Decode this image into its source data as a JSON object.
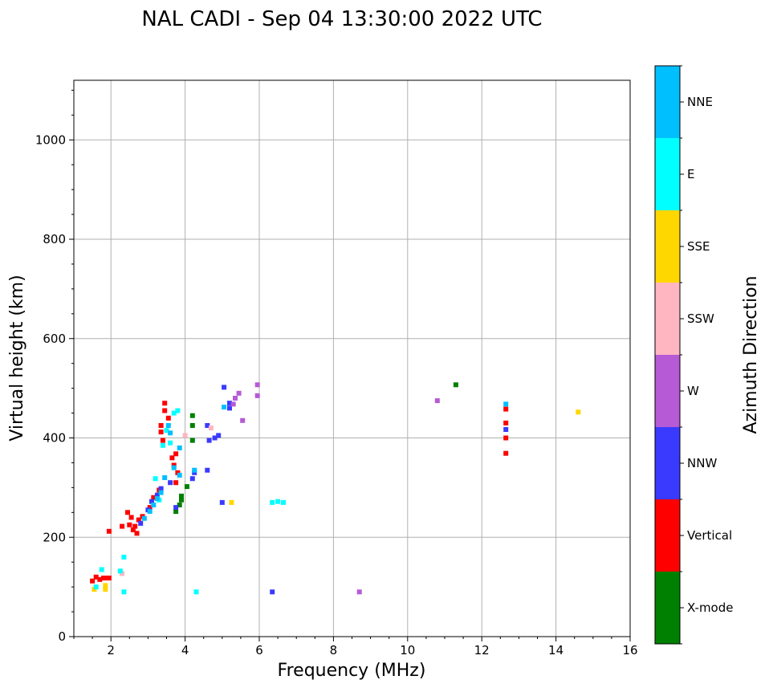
{
  "chart_data": {
    "type": "scatter",
    "title": "NAL CADI - Sep 04 13:30:00 2022 UTC",
    "xlabel": "Frequency (MHz)",
    "ylabel": "Virtual height (km)",
    "xlim": [
      1,
      16
    ],
    "ylim": [
      0,
      1120
    ],
    "xticks": [
      2,
      4,
      6,
      8,
      10,
      12,
      14,
      16
    ],
    "yticks": [
      0,
      200,
      400,
      600,
      800,
      1000
    ],
    "grid": true,
    "colorbar": {
      "label": "Azimuth Direction",
      "categories": [
        {
          "name": "X-mode",
          "color": "#008000"
        },
        {
          "name": "Vertical",
          "color": "#ff0000"
        },
        {
          "name": "NNW",
          "color": "#3a3aff"
        },
        {
          "name": "W",
          "color": "#b65ad6"
        },
        {
          "name": "SSW",
          "color": "#ffb6c1"
        },
        {
          "name": "SSE",
          "color": "#ffd700"
        },
        {
          "name": "E",
          "color": "#00ffff"
        },
        {
          "name": "NNE",
          "color": "#00bfff"
        }
      ]
    },
    "series": [
      {
        "name": "X-mode",
        "points": [
          [
            3.75,
            252
          ],
          [
            3.85,
            265
          ],
          [
            3.9,
            275
          ],
          [
            3.9,
            283
          ],
          [
            4.05,
            302
          ],
          [
            4.2,
            395
          ],
          [
            4.2,
            425
          ],
          [
            4.2,
            445
          ],
          [
            11.3,
            507
          ]
        ]
      },
      {
        "name": "Vertical",
        "points": [
          [
            1.5,
            112
          ],
          [
            1.6,
            120
          ],
          [
            1.7,
            115
          ],
          [
            1.8,
            118
          ],
          [
            1.9,
            118
          ],
          [
            1.95,
            118
          ],
          [
            1.95,
            212
          ],
          [
            2.3,
            222
          ],
          [
            2.45,
            250
          ],
          [
            2.5,
            225
          ],
          [
            2.55,
            240
          ],
          [
            2.6,
            215
          ],
          [
            2.65,
            222
          ],
          [
            2.7,
            208
          ],
          [
            2.75,
            235
          ],
          [
            2.85,
            242
          ],
          [
            3.05,
            260
          ],
          [
            3.15,
            280
          ],
          [
            3.3,
            295
          ],
          [
            3.35,
            425
          ],
          [
            3.35,
            412
          ],
          [
            3.4,
            395
          ],
          [
            3.45,
            470
          ],
          [
            3.45,
            455
          ],
          [
            3.55,
            440
          ],
          [
            3.65,
            360
          ],
          [
            3.7,
            345
          ],
          [
            3.75,
            368
          ],
          [
            3.75,
            310
          ],
          [
            3.8,
            330
          ],
          [
            12.65,
            369
          ],
          [
            12.65,
            400
          ],
          [
            12.65,
            430
          ],
          [
            12.65,
            458
          ]
        ]
      },
      {
        "name": "NNW",
        "points": [
          [
            2.8,
            228
          ],
          [
            3.0,
            255
          ],
          [
            3.1,
            272
          ],
          [
            3.25,
            285
          ],
          [
            3.35,
            298
          ],
          [
            3.6,
            310
          ],
          [
            3.75,
            260
          ],
          [
            4.2,
            318
          ],
          [
            4.25,
            330
          ],
          [
            4.6,
            335
          ],
          [
            4.6,
            425
          ],
          [
            4.65,
            395
          ],
          [
            4.8,
            400
          ],
          [
            4.9,
            405
          ],
          [
            5.0,
            270
          ],
          [
            5.05,
            502
          ],
          [
            5.2,
            460
          ],
          [
            5.2,
            470
          ],
          [
            6.35,
            90
          ],
          [
            12.65,
            417
          ]
        ]
      },
      {
        "name": "W",
        "points": [
          [
            5.3,
            468
          ],
          [
            5.35,
            480
          ],
          [
            5.45,
            490
          ],
          [
            5.55,
            435
          ],
          [
            5.95,
            485
          ],
          [
            5.95,
            507
          ],
          [
            8.7,
            90
          ],
          [
            10.8,
            475
          ]
        ]
      },
      {
        "name": "SSW",
        "points": [
          [
            2.3,
            127
          ],
          [
            4.0,
            405
          ],
          [
            4.7,
            420
          ]
        ]
      },
      {
        "name": "SSE",
        "points": [
          [
            1.55,
            95
          ],
          [
            1.85,
            95
          ],
          [
            1.85,
            103
          ],
          [
            5.25,
            270
          ],
          [
            14.6,
            452
          ]
        ]
      },
      {
        "name": "E",
        "points": [
          [
            1.6,
            100
          ],
          [
            1.75,
            135
          ],
          [
            2.25,
            132
          ],
          [
            2.35,
            160
          ],
          [
            2.35,
            90
          ],
          [
            3.2,
            318
          ],
          [
            3.3,
            275
          ],
          [
            3.4,
            385
          ],
          [
            3.5,
            415
          ],
          [
            3.6,
            390
          ],
          [
            3.7,
            450
          ],
          [
            3.8,
            455
          ],
          [
            4.3,
            90
          ],
          [
            6.35,
            270
          ],
          [
            6.5,
            272
          ],
          [
            6.65,
            270
          ]
        ]
      },
      {
        "name": "NNE",
        "points": [
          [
            2.9,
            238
          ],
          [
            3.05,
            252
          ],
          [
            3.15,
            265
          ],
          [
            3.25,
            278
          ],
          [
            3.35,
            290
          ],
          [
            3.45,
            320
          ],
          [
            3.55,
            425
          ],
          [
            3.6,
            410
          ],
          [
            3.7,
            340
          ],
          [
            3.85,
            380
          ],
          [
            3.85,
            325
          ],
          [
            4.25,
            335
          ],
          [
            5.05,
            462
          ],
          [
            12.65,
            468
          ]
        ]
      }
    ]
  }
}
